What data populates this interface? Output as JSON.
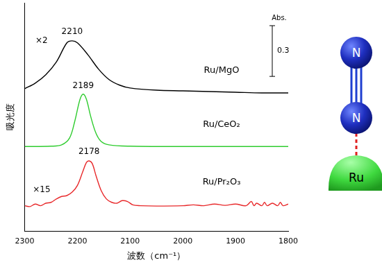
{
  "chart_data": {
    "type": "line",
    "x_label": "波数（cm⁻¹）",
    "y_label": "吸光度",
    "xlim": [
      2300,
      1800
    ],
    "xticks": [
      2300,
      2200,
      2100,
      2000,
      1900,
      1800
    ],
    "ylim": [
      0,
      1.35
    ],
    "tick_labels": "x",
    "grid": false,
    "series": [
      {
        "name": "Ru/MgO",
        "color": "#000000",
        "x": [
          2300,
          2280,
          2260,
          2240,
          2220,
          2210,
          2200,
          2180,
          2160,
          2140,
          2120,
          2100,
          2050,
          2000,
          1950,
          1900,
          1850,
          1800
        ],
        "values": [
          0.842,
          0.875,
          0.925,
          1.0,
          1.113,
          1.125,
          1.113,
          1.042,
          0.958,
          0.896,
          0.863,
          0.846,
          0.833,
          0.829,
          0.825,
          0.821,
          0.817,
          0.817
        ]
      },
      {
        "name": "Ru/CeO₂",
        "color": "#2ecc2e",
        "x": [
          2300,
          2250,
          2230,
          2215,
          2205,
          2195,
          2189,
          2183,
          2175,
          2165,
          2155,
          2140,
          2100,
          2000,
          1900,
          1800
        ],
        "values": [
          0.5,
          0.502,
          0.51,
          0.55,
          0.65,
          0.78,
          0.81,
          0.78,
          0.68,
          0.58,
          0.53,
          0.51,
          0.502,
          0.5,
          0.5,
          0.5
        ]
      },
      {
        "name": "Ru/Pr₂O₃",
        "color": "#e8282a",
        "x": [
          2300,
          2290,
          2280,
          2270,
          2260,
          2250,
          2240,
          2230,
          2220,
          2210,
          2200,
          2190,
          2183,
          2178,
          2172,
          2165,
          2155,
          2145,
          2135,
          2125,
          2115,
          2105,
          2095,
          2080,
          2050,
          2000,
          1980,
          1960,
          1940,
          1920,
          1900,
          1880,
          1870,
          1865,
          1860,
          1850,
          1845,
          1840,
          1830,
          1820,
          1815,
          1810,
          1800
        ],
        "values": [
          0.15,
          0.145,
          0.16,
          0.15,
          0.165,
          0.17,
          0.19,
          0.205,
          0.21,
          0.23,
          0.27,
          0.35,
          0.405,
          0.415,
          0.4,
          0.33,
          0.24,
          0.19,
          0.17,
          0.165,
          0.18,
          0.175,
          0.155,
          0.15,
          0.148,
          0.15,
          0.155,
          0.15,
          0.16,
          0.152,
          0.16,
          0.15,
          0.175,
          0.15,
          0.165,
          0.15,
          0.17,
          0.15,
          0.165,
          0.15,
          0.17,
          0.15,
          0.16
        ]
      }
    ],
    "annotations": [
      {
        "text": "2210",
        "x": 2210,
        "y": 1.18
      },
      {
        "text": "2189",
        "x": 2189,
        "y": 0.86
      },
      {
        "text": "2178",
        "x": 2178,
        "y": 0.467
      },
      {
        "text": "×2",
        "x": 2268,
        "y": 1.125
      },
      {
        "text": "×15",
        "x": 2268,
        "y": 0.242
      }
    ],
    "scale_bar": {
      "label": "Abs.",
      "value": 0.3
    }
  },
  "diagram": {
    "atoms": [
      "N",
      "N",
      "Ru"
    ]
  }
}
